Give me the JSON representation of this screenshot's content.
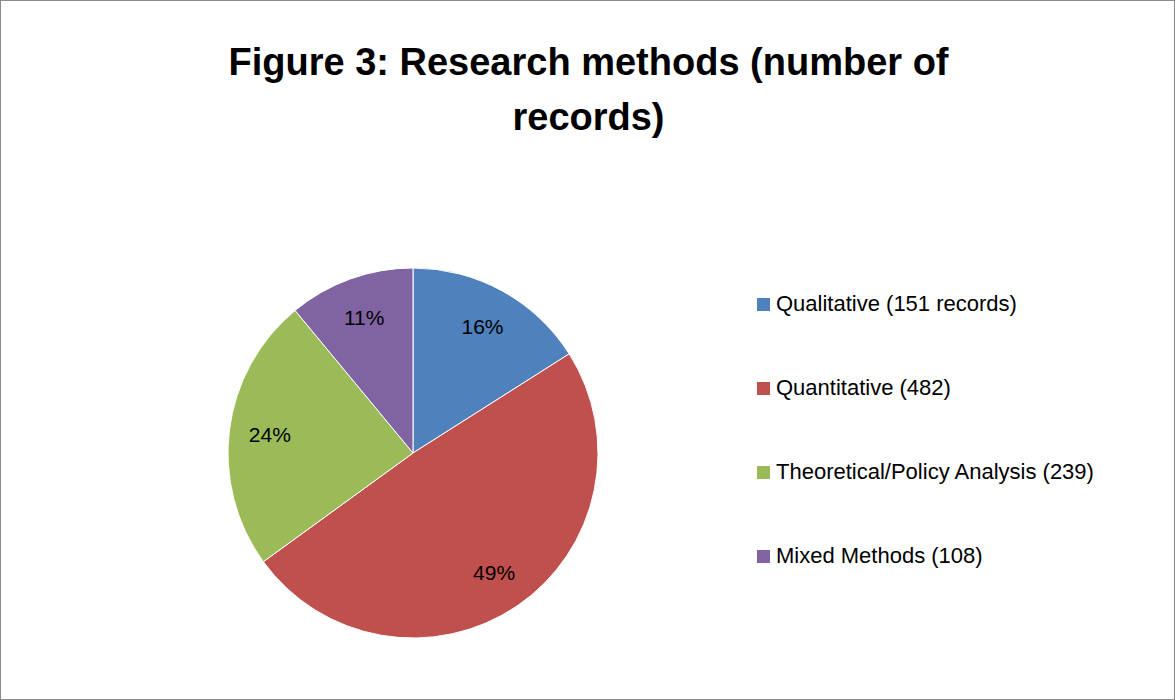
{
  "chart_data": {
    "type": "pie",
    "title": "Figure 3: Research methods (number of records)",
    "categories": [
      "Qualitative (151 records)",
      "Quantitative (482)",
      "Theoretical/Policy Analysis (239)",
      "Mixed Methods (108)"
    ],
    "values": [
      16,
      49,
      24,
      11
    ],
    "value_labels": [
      "16%",
      "49%",
      "24%",
      "11%"
    ],
    "colors": [
      "#4f81bd",
      "#c0504d",
      "#9bbb59",
      "#8064a2"
    ],
    "data_labels": true,
    "legend": "right"
  }
}
